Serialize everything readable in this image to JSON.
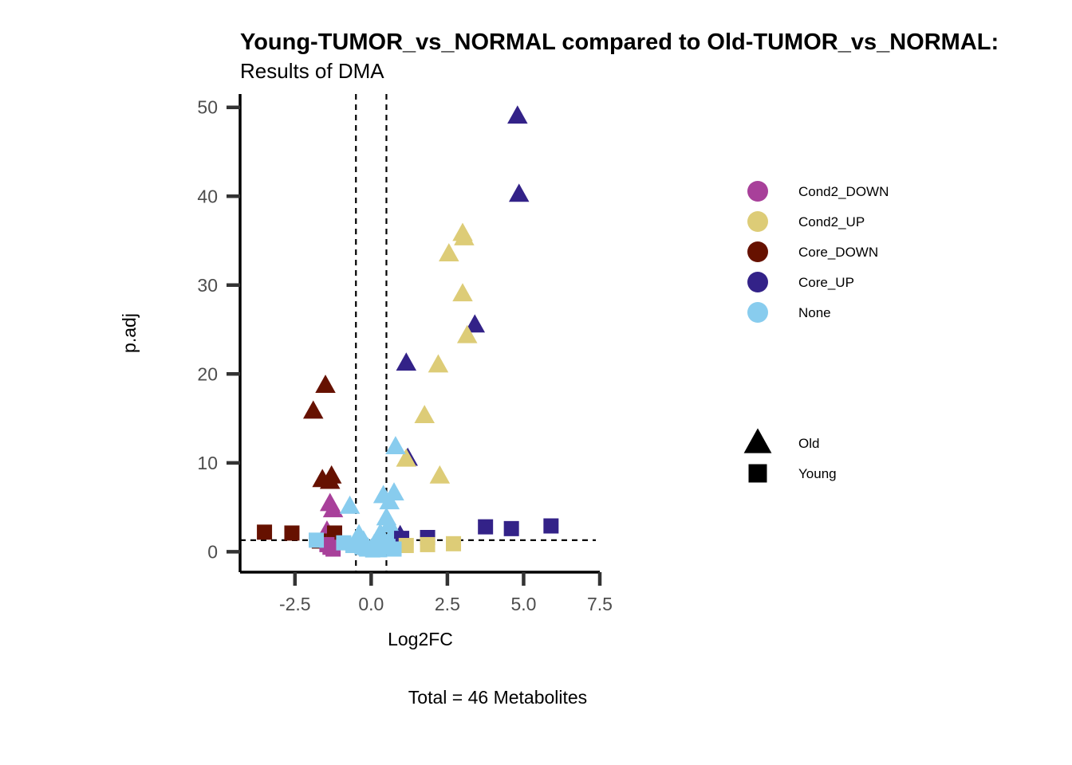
{
  "chart_data": {
    "type": "scatter",
    "title": "Young-TUMOR_vs_NORMAL compared to Old-TUMOR_vs_NORMAL:",
    "subtitle": "Results of DMA",
    "xlabel": "Log2FC",
    "ylabel": "p.adj",
    "caption": "Total = 46 Metabolites",
    "xlim": [
      -4.3,
      7.5
    ],
    "ylim": [
      -2.3,
      51.5
    ],
    "xticks": [
      -2.5,
      0.0,
      2.5,
      5.0,
      7.5
    ],
    "xtick_labels": [
      "-2.5",
      "0.0",
      "2.5",
      "5.0",
      "7.5"
    ],
    "yticks": [
      0,
      10,
      20,
      30,
      40,
      50
    ],
    "ytick_labels": [
      "0",
      "10",
      "20",
      "30",
      "40",
      "50"
    ],
    "grid": false,
    "legend_position": "right",
    "vlines": [
      -0.5,
      0.5
    ],
    "hline": 1.3,
    "colors": {
      "Cond2_DOWN": "#a8409a",
      "Cond2_UP": "#ddcc77",
      "Core_DOWN": "#661100",
      "Core_UP": "#332288",
      "None": "#88ccee"
    },
    "color_legend": [
      "Cond2_DOWN",
      "Cond2_UP",
      "Core_DOWN",
      "Core_UP",
      "None"
    ],
    "shape_legend": [
      {
        "name": "Old",
        "shape": "triangle"
      },
      {
        "name": "Young",
        "shape": "square"
      }
    ],
    "points": [
      {
        "x": 4.8,
        "y": 49.0,
        "group": "Core_UP",
        "shape": "triangle"
      },
      {
        "x": 4.85,
        "y": 40.2,
        "group": "Core_UP",
        "shape": "triangle"
      },
      {
        "x": 3.4,
        "y": 25.5,
        "group": "Core_UP",
        "shape": "triangle"
      },
      {
        "x": 1.15,
        "y": 21.2,
        "group": "Core_UP",
        "shape": "triangle"
      },
      {
        "x": 1.2,
        "y": 10.5,
        "group": "Core_UP",
        "shape": "triangle"
      },
      {
        "x": 0.95,
        "y": 1.8,
        "group": "Core_UP",
        "shape": "triangle"
      },
      {
        "x": 3.0,
        "y": 35.8,
        "group": "Cond2_UP",
        "shape": "triangle"
      },
      {
        "x": 3.05,
        "y": 35.3,
        "group": "Cond2_UP",
        "shape": "triangle"
      },
      {
        "x": 2.55,
        "y": 33.5,
        "group": "Cond2_UP",
        "shape": "triangle"
      },
      {
        "x": 3.0,
        "y": 29.0,
        "group": "Cond2_UP",
        "shape": "triangle"
      },
      {
        "x": 3.15,
        "y": 24.3,
        "group": "Cond2_UP",
        "shape": "triangle"
      },
      {
        "x": 2.2,
        "y": 21.0,
        "group": "Cond2_UP",
        "shape": "triangle"
      },
      {
        "x": 1.75,
        "y": 15.3,
        "group": "Cond2_UP",
        "shape": "triangle"
      },
      {
        "x": 1.15,
        "y": 10.4,
        "group": "Cond2_UP",
        "shape": "triangle"
      },
      {
        "x": 2.25,
        "y": 8.5,
        "group": "Cond2_UP",
        "shape": "triangle"
      },
      {
        "x": -1.5,
        "y": 18.7,
        "group": "Core_DOWN",
        "shape": "triangle"
      },
      {
        "x": -1.9,
        "y": 15.8,
        "group": "Core_DOWN",
        "shape": "triangle"
      },
      {
        "x": -1.6,
        "y": 8.1,
        "group": "Core_DOWN",
        "shape": "triangle"
      },
      {
        "x": -1.3,
        "y": 8.5,
        "group": "Core_DOWN",
        "shape": "triangle"
      },
      {
        "x": -1.35,
        "y": 7.9,
        "group": "Core_DOWN",
        "shape": "triangle"
      },
      {
        "x": -1.35,
        "y": 5.4,
        "group": "Cond2_DOWN",
        "shape": "triangle"
      },
      {
        "x": -1.25,
        "y": 4.7,
        "group": "Cond2_DOWN",
        "shape": "triangle"
      },
      {
        "x": -1.45,
        "y": 2.3,
        "group": "Cond2_DOWN",
        "shape": "triangle"
      },
      {
        "x": 0.8,
        "y": 11.8,
        "group": "None",
        "shape": "triangle"
      },
      {
        "x": -0.7,
        "y": 5.1,
        "group": "None",
        "shape": "triangle"
      },
      {
        "x": 0.4,
        "y": 6.3,
        "group": "None",
        "shape": "triangle"
      },
      {
        "x": 0.75,
        "y": 6.6,
        "group": "None",
        "shape": "triangle"
      },
      {
        "x": 0.6,
        "y": 5.6,
        "group": "None",
        "shape": "triangle"
      },
      {
        "x": 0.5,
        "y": 3.8,
        "group": "None",
        "shape": "triangle"
      },
      {
        "x": 0.6,
        "y": 3.0,
        "group": "None",
        "shape": "triangle"
      },
      {
        "x": 0.3,
        "y": 2.0,
        "group": "None",
        "shape": "triangle"
      },
      {
        "x": -0.4,
        "y": 1.9,
        "group": "None",
        "shape": "triangle"
      },
      {
        "x": -0.25,
        "y": 1.2,
        "group": "None",
        "shape": "triangle"
      },
      {
        "x": 0.1,
        "y": 0.8,
        "group": "None",
        "shape": "triangle"
      },
      {
        "x": 0.3,
        "y": 0.5,
        "group": "None",
        "shape": "triangle"
      },
      {
        "x": -0.1,
        "y": 0.4,
        "group": "None",
        "shape": "triangle"
      },
      {
        "x": 0.0,
        "y": 0.3,
        "group": "None",
        "shape": "triangle"
      },
      {
        "x": 0.2,
        "y": 0.2,
        "group": "None",
        "shape": "triangle"
      },
      {
        "x": 0.65,
        "y": 1.6,
        "group": "None",
        "shape": "triangle"
      },
      {
        "x": -3.5,
        "y": 2.2,
        "group": "Core_DOWN",
        "shape": "square"
      },
      {
        "x": -2.6,
        "y": 2.1,
        "group": "Core_DOWN",
        "shape": "square"
      },
      {
        "x": -1.2,
        "y": 2.1,
        "group": "Core_DOWN",
        "shape": "square"
      },
      {
        "x": -1.7,
        "y": 1.2,
        "group": "Core_DOWN",
        "shape": "square"
      },
      {
        "x": 5.9,
        "y": 2.9,
        "group": "Core_UP",
        "shape": "square"
      },
      {
        "x": 3.75,
        "y": 2.8,
        "group": "Core_UP",
        "shape": "square"
      },
      {
        "x": 4.6,
        "y": 2.6,
        "group": "Core_UP",
        "shape": "square"
      },
      {
        "x": 1.85,
        "y": 1.6,
        "group": "Core_UP",
        "shape": "square"
      },
      {
        "x": 1.0,
        "y": 1.5,
        "group": "Core_UP",
        "shape": "square"
      },
      {
        "x": 2.7,
        "y": 0.9,
        "group": "Cond2_UP",
        "shape": "square"
      },
      {
        "x": 1.85,
        "y": 0.8,
        "group": "Cond2_UP",
        "shape": "square"
      },
      {
        "x": 1.15,
        "y": 0.7,
        "group": "Cond2_UP",
        "shape": "square"
      },
      {
        "x": -1.35,
        "y": 0.5,
        "group": "Cond2_DOWN",
        "shape": "square"
      },
      {
        "x": -1.25,
        "y": 0.3,
        "group": "Cond2_DOWN",
        "shape": "square"
      },
      {
        "x": -1.45,
        "y": 0.8,
        "group": "Cond2_DOWN",
        "shape": "square"
      },
      {
        "x": -1.8,
        "y": 1.3,
        "group": "None",
        "shape": "square"
      },
      {
        "x": -0.9,
        "y": 1.0,
        "group": "None",
        "shape": "square"
      },
      {
        "x": -0.6,
        "y": 0.7,
        "group": "None",
        "shape": "square"
      },
      {
        "x": -0.3,
        "y": 0.5,
        "group": "None",
        "shape": "square"
      },
      {
        "x": -0.15,
        "y": 0.3,
        "group": "None",
        "shape": "square"
      },
      {
        "x": 0.05,
        "y": 0.2,
        "group": "None",
        "shape": "square"
      },
      {
        "x": 0.25,
        "y": 0.4,
        "group": "None",
        "shape": "square"
      },
      {
        "x": 0.55,
        "y": 0.6,
        "group": "None",
        "shape": "square"
      },
      {
        "x": 0.75,
        "y": 0.3,
        "group": "None",
        "shape": "square"
      },
      {
        "x": 0.45,
        "y": 0.9,
        "group": "None",
        "shape": "square"
      }
    ]
  }
}
